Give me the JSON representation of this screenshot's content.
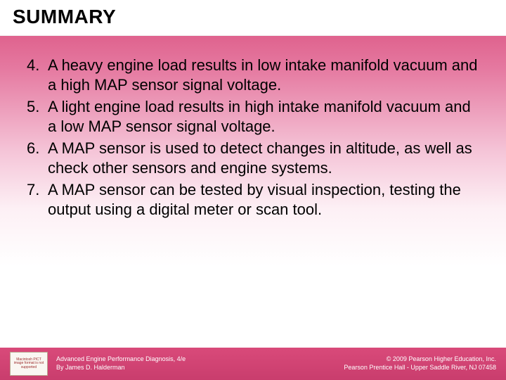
{
  "title": "SUMMARY",
  "list": {
    "start": 4,
    "items": [
      {
        "num": "4.",
        "text": "A heavy engine load results in low intake manifold vacuum and a high MAP sensor signal voltage."
      },
      {
        "num": "5.",
        "text": "A light engine load results in high intake manifold vacuum and a low MAP sensor signal voltage."
      },
      {
        "num": "6.",
        "text": "A MAP sensor is used to detect changes in altitude, as well as check other sensors and engine systems."
      },
      {
        "num": "7.",
        "text": "A MAP sensor can be tested by visual inspection, testing the output using a digital meter or scan tool."
      }
    ]
  },
  "footer": {
    "placeholder": "Macintosh PICT image format is not supported",
    "left_line1": "Advanced Engine Performance Diagnosis, 4/e",
    "left_line2": "By James D. Halderman",
    "right_line1": "© 2009 Pearson Higher Education, Inc.",
    "right_line2": "Pearson Prentice Hall - Upper Saddle River, NJ 07458"
  },
  "colors": {
    "gradient_top": "#d94a7a",
    "gradient_bottom": "#ffffff",
    "footer_bg": "#c93d6d",
    "text": "#000000",
    "footer_text": "#ffffff"
  },
  "typography": {
    "title_fontsize": 28,
    "body_fontsize": 22,
    "footer_fontsize": 9,
    "font_family": "Arial"
  }
}
